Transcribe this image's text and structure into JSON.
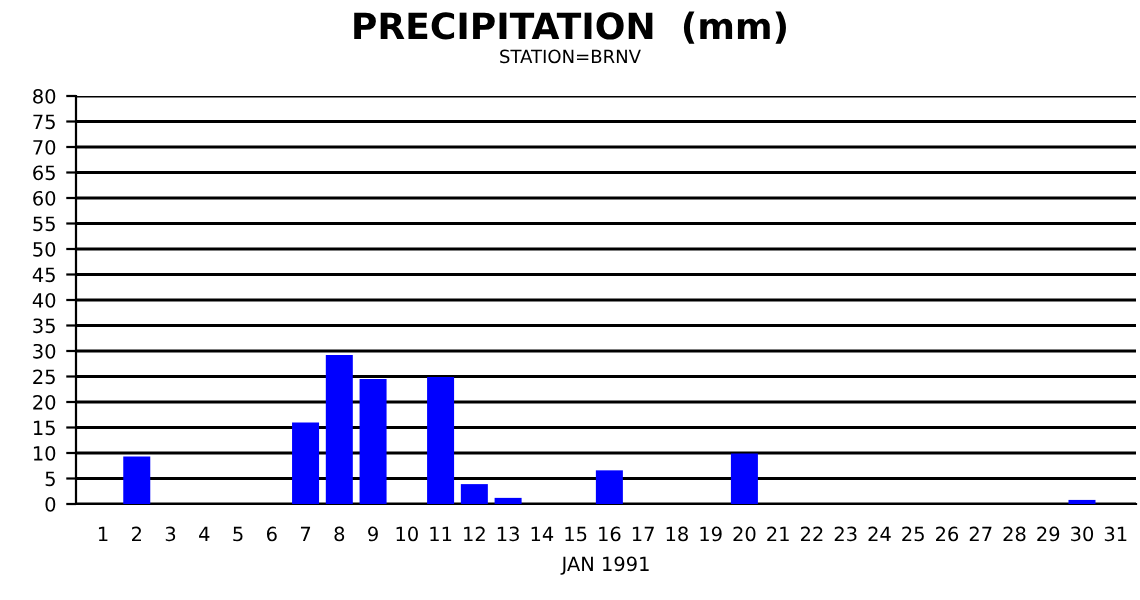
{
  "chart_data": {
    "type": "bar",
    "title": "PRECIPITATION  (mm)",
    "subtitle": "STATION=BRNV",
    "xlabel": "JAN 1991",
    "categories": [
      "1",
      "2",
      "3",
      "4",
      "5",
      "6",
      "7",
      "8",
      "9",
      "10",
      "11",
      "12",
      "13",
      "14",
      "15",
      "16",
      "17",
      "18",
      "19",
      "20",
      "21",
      "22",
      "23",
      "24",
      "25",
      "26",
      "27",
      "28",
      "29",
      "30",
      "31"
    ],
    "values": [
      0,
      9.3,
      0,
      0,
      0,
      0,
      16,
      29.2,
      24.5,
      0,
      24.9,
      3.9,
      1.2,
      0,
      0,
      6.6,
      0,
      0,
      0,
      9.9,
      0,
      0,
      0,
      0,
      0,
      0,
      0,
      0,
      0,
      0.8,
      0
    ],
    "color": "#0000ff",
    "ylim": [
      0,
      80
    ],
    "yticks": [
      0,
      5,
      10,
      15,
      20,
      25,
      30,
      35,
      40,
      45,
      50,
      55,
      60,
      65,
      70,
      75,
      80
    ],
    "grid": "y"
  }
}
